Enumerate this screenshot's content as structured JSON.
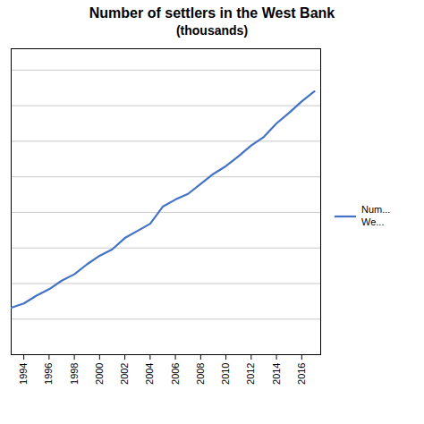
{
  "chart_data": {
    "type": "line",
    "title": "Number of settlers in the West Bank",
    "subtitle": "(thousands)",
    "x": [
      1993,
      1994,
      1995,
      1996,
      1997,
      1998,
      1999,
      2000,
      2001,
      2002,
      2003,
      2004,
      2005,
      2006,
      2007,
      2008,
      2009,
      2010,
      2011,
      2012,
      2013,
      2014,
      2015,
      2016,
      2017
    ],
    "series": [
      {
        "name": "Num...\nWe...",
        "color": "#4472C4",
        "values": [
          116,
          122,
          133,
          142,
          154,
          163,
          177,
          189,
          198,
          214,
          224,
          234,
          258,
          268,
          276,
          290,
          304,
          315,
          329,
          344,
          356,
          375,
          390,
          406,
          420
        ]
      }
    ],
    "xlim": [
      1993,
      2017.5
    ],
    "xticks": [
      1994,
      1996,
      1998,
      2000,
      2002,
      2004,
      2006,
      2008,
      2010,
      2012,
      2014,
      2016
    ],
    "ylim": [
      50,
      480
    ],
    "yticks": [
      100,
      150,
      200,
      250,
      300,
      350,
      400,
      450
    ],
    "grid": true,
    "legend": "right",
    "tick_labels": "x"
  }
}
